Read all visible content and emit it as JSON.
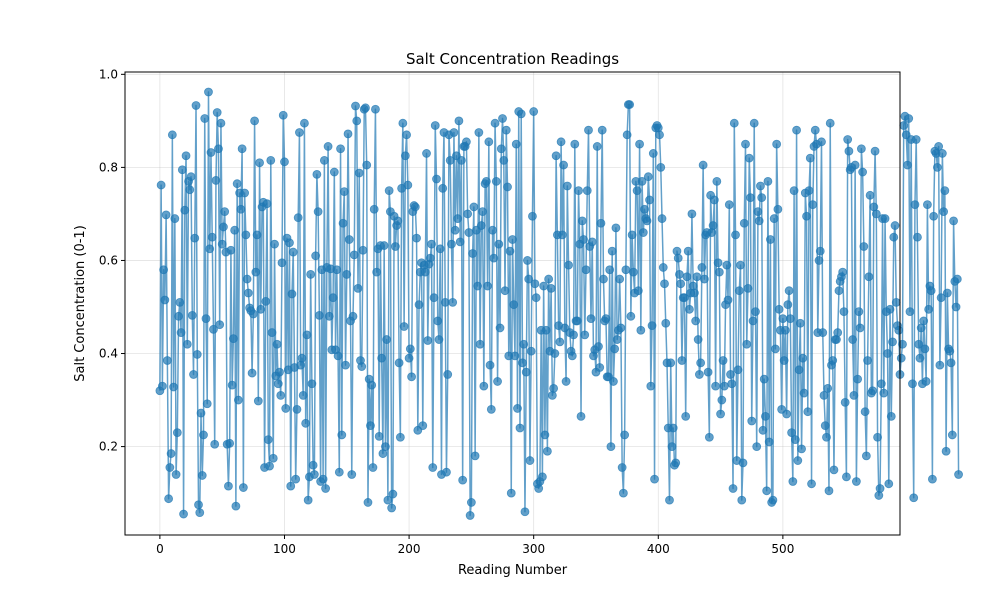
{
  "chart_data": {
    "type": "line",
    "title": "Salt Concentration Readings",
    "xlabel": "Reading Number",
    "ylabel": "Salt Concentration (0-1)",
    "xlim": [
      -28,
      594
    ],
    "ylim": [
      0.01,
      1.005
    ],
    "x_ticks": [
      0,
      100,
      200,
      300,
      400,
      500
    ],
    "y_ticks": [
      0.2,
      0.4,
      0.6,
      0.8,
      1.0
    ],
    "y_tick_labels": [
      "0.2",
      "0.4",
      "0.6",
      "0.8",
      "1.0"
    ],
    "grid": true,
    "legend": "none",
    "colors": {
      "line": "#1f77b4",
      "marker": "#1f77b4"
    },
    "series": [
      {
        "x_start": 0,
        "x_step": 1,
        "values": [
          0.32,
          0.762,
          0.33,
          0.58,
          0.515,
          0.698,
          0.385,
          0.088,
          0.155,
          0.185,
          0.87,
          0.328,
          0.69,
          0.14,
          0.23,
          0.48,
          0.51,
          0.445,
          0.795,
          0.055,
          0.708,
          0.825,
          0.42,
          0.77,
          0.752,
          0.78,
          0.482,
          0.355,
          0.648,
          0.933,
          0.398,
          0.075,
          0.058,
          0.272,
          0.138,
          0.225,
          0.905,
          0.475,
          0.292,
          0.962,
          0.625,
          0.832,
          0.65,
          0.452,
          0.205,
          0.772,
          0.918,
          0.84,
          0.462,
          0.895,
          0.635,
          0.672,
          0.705,
          0.618,
          0.205,
          0.115,
          0.207,
          0.622,
          0.332,
          0.432,
          0.665,
          0.072,
          0.765,
          0.3,
          0.745,
          0.71,
          0.84,
          0.112,
          0.745,
          0.655,
          0.56,
          0.53,
          0.498,
          0.492,
          0.358,
          0.485,
          0.9,
          0.575,
          0.655,
          0.298,
          0.81,
          0.495,
          0.715,
          0.725,
          0.155,
          0.512,
          0.722,
          0.215,
          0.158,
          0.815,
          0.445,
          0.175,
          0.635,
          0.352,
          0.42,
          0.335,
          0.36,
          0.31,
          0.595,
          0.912,
          0.812,
          0.282,
          0.648,
          0.365,
          0.638,
          0.115,
          0.528,
          0.618,
          0.37,
          0.13,
          0.28,
          0.692,
          0.875,
          0.375,
          0.39,
          0.31,
          0.895,
          0.25,
          0.44,
          0.085,
          0.135,
          0.57,
          0.335,
          0.16,
          0.14,
          0.61,
          0.785,
          0.705,
          0.482,
          0.125,
          0.58,
          0.13,
          0.815,
          0.11,
          0.585,
          0.845,
          0.48,
          0.582,
          0.408,
          0.52,
          0.79,
          0.408,
          0.58,
          0.395,
          0.145,
          0.84,
          0.225,
          0.68,
          0.748,
          0.375,
          0.57,
          0.872,
          0.645,
          0.47,
          0.14,
          0.48,
          0.612,
          0.932,
          0.9,
          0.54,
          0.788,
          0.385,
          0.372,
          0.622,
          0.925,
          0.928,
          0.805,
          0.08,
          0.345,
          0.245,
          0.332,
          0.155,
          0.71,
          0.925,
          0.575,
          0.625,
          0.222,
          0.632,
          0.39,
          0.185,
          0.632,
          0.2,
          0.43,
          0.085,
          0.75,
          0.705,
          0.068,
          0.098,
          0.695,
          0.63,
          0.675,
          0.685,
          0.38,
          0.22,
          0.755,
          0.895,
          0.458,
          0.825,
          0.87,
          0.762,
          0.39,
          0.41,
          0.35,
          0.705,
          0.718,
          0.715,
          0.648,
          0.235,
          0.505,
          0.575,
          0.595,
          0.245,
          0.59,
          0.575,
          0.83,
          0.428,
          0.592,
          0.605,
          0.635,
          0.155,
          0.52,
          0.89,
          0.775,
          0.47,
          0.43,
          0.625,
          0.14,
          0.755,
          0.875,
          0.51,
          0.145,
          0.355,
          0.87,
          0.815,
          0.635,
          0.51,
          0.875,
          0.665,
          0.825,
          0.69,
          0.9,
          0.64,
          0.815,
          0.128,
          0.845,
          0.845,
          0.855,
          0.7,
          0.66,
          0.052,
          0.08,
          0.615,
          0.715,
          0.18,
          0.665,
          0.545,
          0.875,
          0.42,
          0.675,
          0.705,
          0.33,
          0.765,
          0.77,
          0.545,
          0.855,
          0.375,
          0.28,
          0.665,
          0.605,
          0.895,
          0.77,
          0.34,
          0.635,
          0.455,
          0.84,
          0.905,
          0.815,
          0.535,
          0.88,
          0.758,
          0.395,
          0.62,
          0.1,
          0.645,
          0.505,
          0.395,
          0.85,
          0.282,
          0.92,
          0.24,
          0.915,
          0.38,
          0.42,
          0.06,
          0.36,
          0.6,
          0.56,
          0.17,
          0.405,
          0.695,
          0.92,
          0.55,
          0.52,
          0.12,
          0.11,
          0.125,
          0.45,
          0.135,
          0.545,
          0.225,
          0.45,
          0.19,
          0.56,
          0.405,
          0.54,
          0.31,
          0.325,
          0.4,
          0.825,
          0.655,
          0.46,
          0.425,
          0.855,
          0.655,
          0.805,
          0.455,
          0.34,
          0.76,
          0.59,
          0.445,
          0.405,
          0.395,
          0.44,
          0.85,
          0.47,
          0.47,
          0.75,
          0.635,
          0.265,
          0.685,
          0.645,
          0.44,
          0.58,
          0.75,
          0.88,
          0.63,
          0.475,
          0.64,
          0.395,
          0.408,
          0.36,
          0.845,
          0.415,
          0.37,
          0.68,
          0.88,
          0.56,
          0.47,
          0.475,
          0.35,
          0.35,
          0.58,
          0.2,
          0.62,
          0.34,
          0.41,
          0.67,
          0.43,
          0.45,
          0.56,
          0.455,
          0.155,
          0.1,
          0.225,
          0.58,
          0.87,
          0.935,
          0.935,
          0.48,
          0.655,
          0.575,
          0.53,
          0.77,
          0.75,
          0.535,
          0.85,
          0.45,
          0.77,
          0.66,
          0.71,
          0.69,
          0.685,
          0.78,
          0.73,
          0.33,
          0.46,
          0.83,
          0.13,
          0.885,
          0.89,
          0.885,
          0.87,
          0.8,
          0.69,
          0.585,
          0.55,
          0.465,
          0.38,
          0.24,
          0.085,
          0.38,
          0.2,
          0.24,
          0.16,
          0.165,
          0.62,
          0.605,
          0.57,
          0.55,
          0.385,
          0.52,
          0.52,
          0.265,
          0.565,
          0.62,
          0.495,
          0.53,
          0.7,
          0.545,
          0.53,
          0.47,
          0.565,
          0.43,
          0.355,
          0.38,
          0.585,
          0.805,
          0.56,
          0.655,
          0.66,
          0.36,
          0.22,
          0.74,
          0.66,
          0.675,
          0.73,
          0.33,
          0.77,
          0.595,
          0.575,
          0.27,
          0.3,
          0.385,
          0.33,
          0.505,
          0.59,
          0.515,
          0.72,
          0.355,
          0.335,
          0.11,
          0.895,
          0.655,
          0.17,
          0.365,
          0.535,
          0.59,
          0.085,
          0.165,
          0.68,
          0.85,
          0.42,
          0.54,
          0.82,
          0.735,
          0.255,
          0.47,
          0.895,
          0.49,
          0.2,
          0.705,
          0.685,
          0.76,
          0.735,
          0.235,
          0.345,
          0.265,
          0.105,
          0.77,
          0.21,
          0.645,
          0.08,
          0.085,
          0.69,
          0.41,
          0.85,
          0.71,
          0.495,
          0.45,
          0.28,
          0.475,
          0.385,
          0.45,
          0.27,
          0.505,
          0.535,
          0.475,
          0.23,
          0.125,
          0.75,
          0.215,
          0.88,
          0.17,
          0.365,
          0.465,
          0.195,
          0.39,
          0.315,
          0.745,
          0.695,
          0.275,
          0.75,
          0.82,
          0.12,
          0.72,
          0.845,
          0.88,
          0.85,
          0.445,
          0.6,
          0.62,
          0.855,
          0.445,
          0.31,
          0.245,
          0.22,
          0.325,
          0.105,
          0.895,
          0.375,
          0.385,
          0.15,
          0.43,
          0.43,
          0.445,
          0.535,
          0.555,
          0.565,
          0.575,
          0.49,
          0.295,
          0.135,
          0.86,
          0.835,
          0.795,
          0.8,
          0.43,
          0.31,
          0.805,
          0.125,
          0.345,
          0.49,
          0.455,
          0.84,
          0.79,
          0.63,
          0.275,
          0.18,
          0.385,
          0.565,
          0.74,
          0.315,
          0.32,
          0.715,
          0.835,
          0.7,
          0.22,
          0.095,
          0.11,
          0.335,
          0.69,
          0.315,
          0.69,
          0.49,
          0.4,
          0.12,
          0.495,
          0.265,
          0.425,
          0.65,
          0.675,
          0.51,
          0.46,
          0.45,
          0.355,
          0.39,
          0.42,
          0.89,
          0.91,
          0.87,
          0.805,
          0.905,
          0.49,
          0.86,
          0.335,
          0.09,
          0.72,
          0.86,
          0.65,
          0.42,
          0.39,
          0.455,
          0.335,
          0.47,
          0.41,
          0.34,
          0.72,
          0.495,
          0.545,
          0.535,
          0.13,
          0.695,
          0.835,
          0.83,
          0.8,
          0.845,
          0.375,
          0.52,
          0.83,
          0.705,
          0.75,
          0.19,
          0.53,
          0.41,
          0.405,
          0.38,
          0.225,
          0.685,
          0.555,
          0.5,
          0.56,
          0.14
        ]
      }
    ]
  }
}
